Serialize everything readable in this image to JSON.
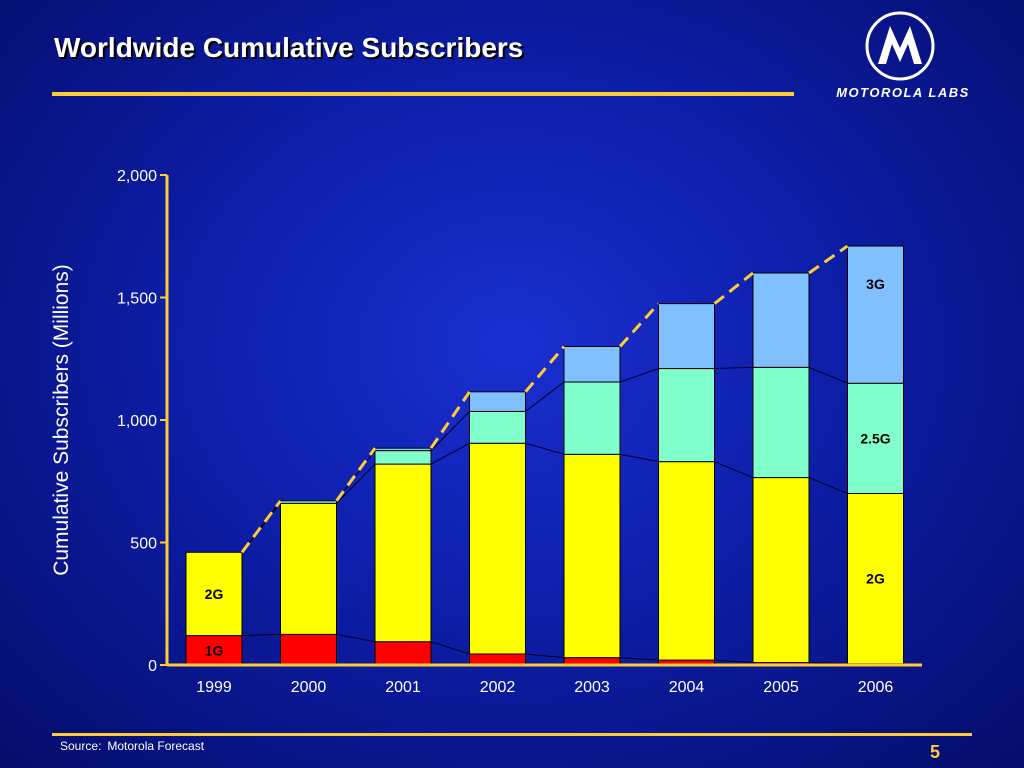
{
  "title": "Worldwide Cumulative Subscribers",
  "logo_text": "MOTOROLA LABS",
  "source_label": "Source:",
  "source_value": "Motorola Forecast",
  "page_number": "5",
  "colors": {
    "background": "#0d1ea8",
    "accent": "#ffcc33",
    "1G": "#ff0000",
    "2G": "#ffff00",
    "2.5G": "#80ffcc",
    "3G": "#80c0ff"
  },
  "chart_data": {
    "type": "bar",
    "stacked": true,
    "title": "",
    "xlabel": "",
    "ylabel": "Cumulative Subscribers (Millions)",
    "ylim": [
      0,
      2000
    ],
    "yticks": [
      {
        "value": 0,
        "label": "0"
      },
      {
        "value": 500,
        "label": "500"
      },
      {
        "value": 1000,
        "label": "1,000"
      },
      {
        "value": 1500,
        "label": "1,500"
      },
      {
        "value": 2000,
        "label": "2,000"
      }
    ],
    "categories": [
      "1999",
      "2000",
      "2001",
      "2002",
      "2003",
      "2004",
      "2005",
      "2006"
    ],
    "series": [
      {
        "name": "1G",
        "color": "#ff0000",
        "values": [
          120,
          125,
          95,
          45,
          30,
          20,
          10,
          5
        ]
      },
      {
        "name": "2G",
        "color": "#ffff00",
        "values": [
          340,
          535,
          725,
          860,
          830,
          810,
          755,
          695
        ]
      },
      {
        "name": "2.5G",
        "color": "#80ffcc",
        "values": [
          0,
          10,
          55,
          130,
          295,
          380,
          450,
          450
        ]
      },
      {
        "name": "3G",
        "color": "#80c0ff",
        "values": [
          0,
          0,
          10,
          80,
          145,
          265,
          385,
          560
        ]
      }
    ],
    "annotations": [
      {
        "text": "1G",
        "category": "1999",
        "series": "1G"
      },
      {
        "text": "2G",
        "category": "1999",
        "series": "2G"
      },
      {
        "text": "2G",
        "category": "2006",
        "series": "2G"
      },
      {
        "text": "2.5G",
        "category": "2006",
        "series": "2.5G"
      },
      {
        "text": "3G",
        "category": "2006",
        "series": "3G"
      }
    ],
    "trend_line": "dashed, connecting tops of stacks",
    "grid": false,
    "legend": "none"
  }
}
